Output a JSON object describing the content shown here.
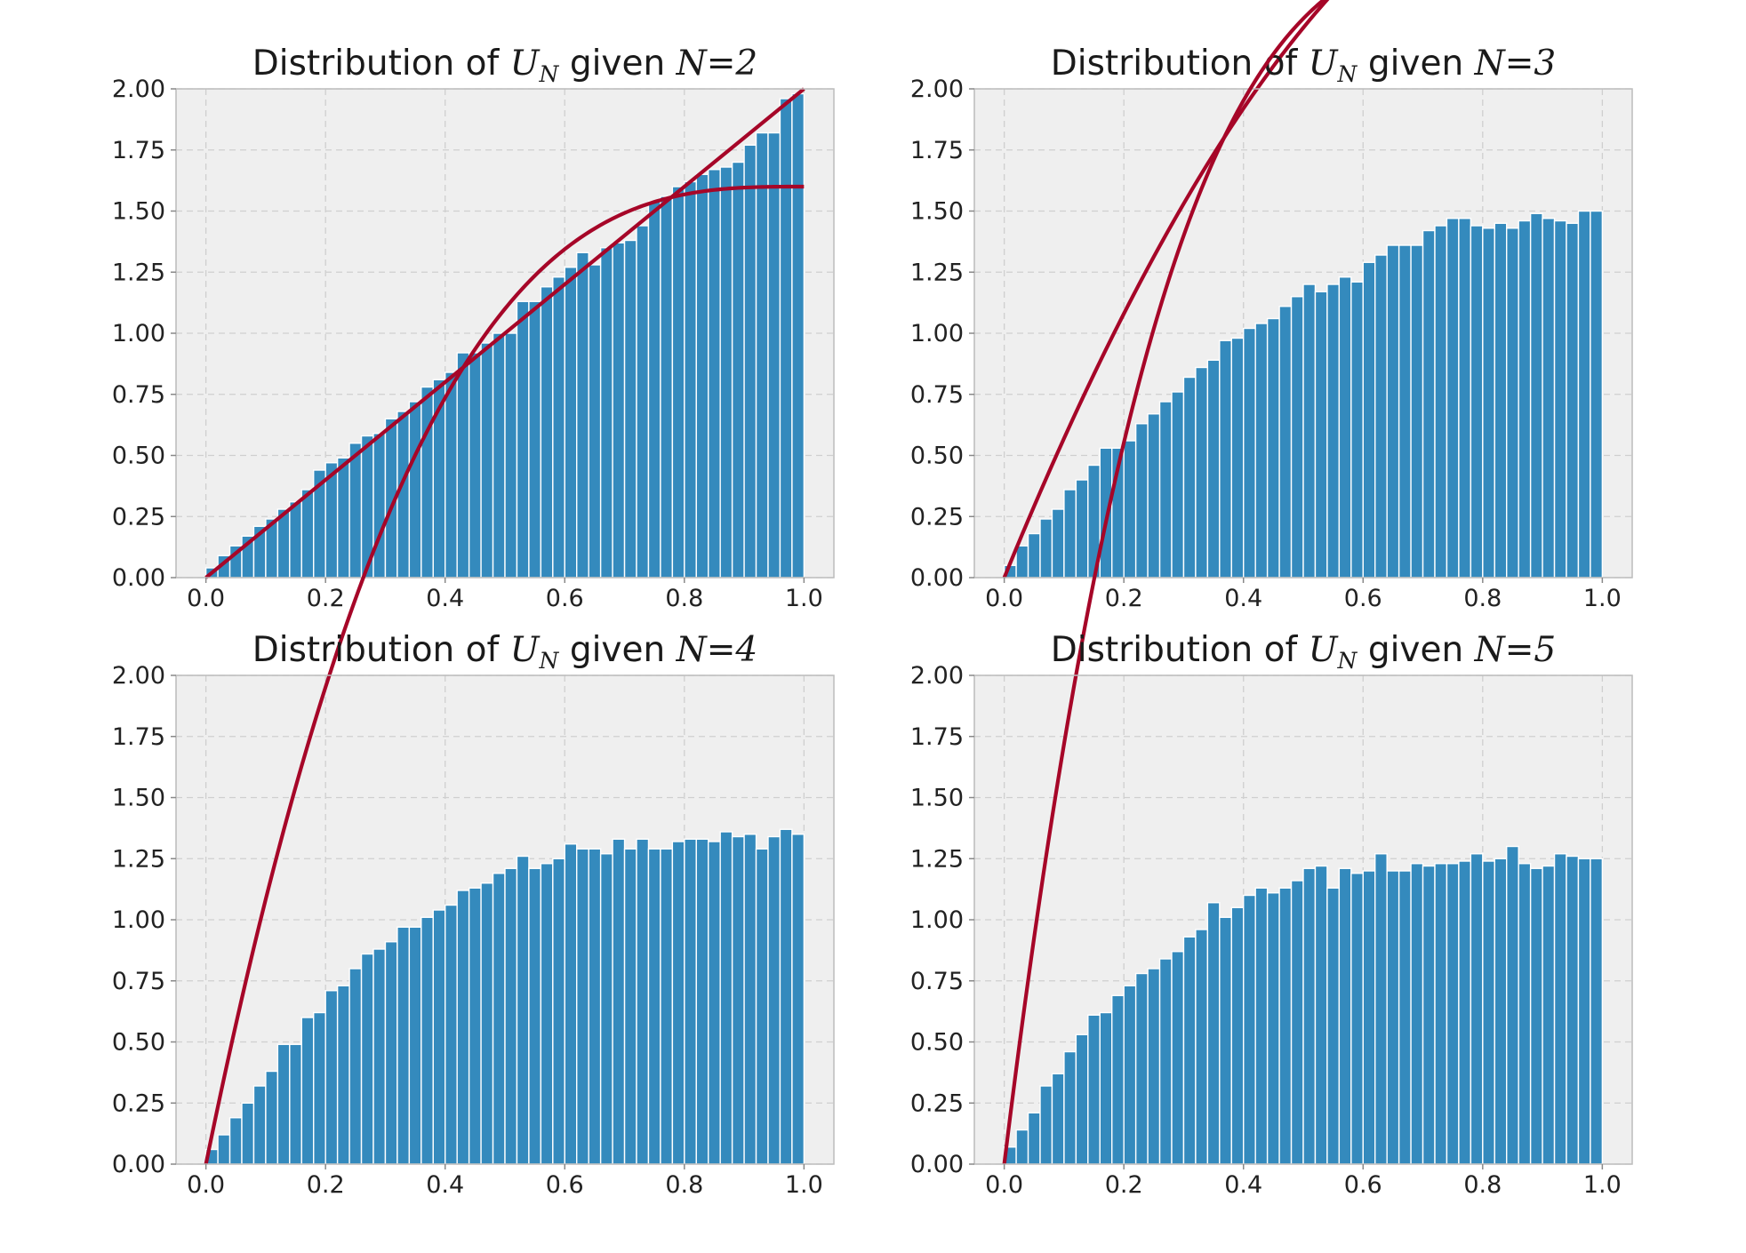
{
  "chart_data": [
    {
      "type": "bar",
      "title": {
        "prefix": "Distribution of ",
        "var": "U",
        "var_sub": "N",
        "middle": " given ",
        "cond": "N",
        "eq": "=",
        "n": "2"
      },
      "n": 2,
      "xlim": [
        -0.05,
        1.05
      ],
      "ylim": [
        0,
        2.0
      ],
      "xticks": [
        "0.0",
        "0.2",
        "0.4",
        "0.6",
        "0.8",
        "1.0"
      ],
      "yticks": [
        "0.00",
        "0.25",
        "0.50",
        "0.75",
        "1.00",
        "1.25",
        "1.50",
        "1.75",
        "2.00"
      ],
      "grid": true,
      "curve_color": "#A60628",
      "bar_color": "#348ABD",
      "bins": 50,
      "bin_range": [
        0,
        1
      ],
      "histogram_density": [
        0.04,
        0.09,
        0.13,
        0.17,
        0.21,
        0.24,
        0.28,
        0.31,
        0.36,
        0.44,
        0.47,
        0.49,
        0.55,
        0.58,
        0.59,
        0.65,
        0.68,
        0.72,
        0.78,
        0.81,
        0.84,
        0.92,
        0.92,
        0.96,
        1.0,
        1.0,
        1.13,
        1.13,
        1.19,
        1.23,
        1.27,
        1.33,
        1.28,
        1.35,
        1.37,
        1.38,
        1.44,
        1.54,
        1.56,
        1.6,
        1.62,
        1.65,
        1.67,
        1.68,
        1.7,
        1.77,
        1.82,
        1.82,
        1.96,
        1.98
      ],
      "density_curve": "N*(1-(1-u)^(N-1))"
    },
    {
      "type": "bar",
      "title": {
        "prefix": "Distribution of ",
        "var": "U",
        "var_sub": "N",
        "middle": " given ",
        "cond": "N",
        "eq": "=",
        "n": "3"
      },
      "n": 3,
      "xlim": [
        -0.05,
        1.05
      ],
      "ylim": [
        0,
        2.0
      ],
      "xticks": [
        "0.0",
        "0.2",
        "0.4",
        "0.6",
        "0.8",
        "1.0"
      ],
      "yticks": [
        "0.00",
        "0.25",
        "0.50",
        "0.75",
        "1.00",
        "1.25",
        "1.50",
        "1.75",
        "2.00"
      ],
      "grid": true,
      "curve_color": "#A60628",
      "bar_color": "#348ABD",
      "bins": 50,
      "bin_range": [
        0,
        1
      ],
      "histogram_density": [
        0.05,
        0.13,
        0.18,
        0.24,
        0.28,
        0.36,
        0.4,
        0.46,
        0.53,
        0.53,
        0.56,
        0.63,
        0.67,
        0.72,
        0.76,
        0.82,
        0.86,
        0.89,
        0.97,
        0.98,
        1.02,
        1.04,
        1.06,
        1.11,
        1.15,
        1.2,
        1.17,
        1.2,
        1.23,
        1.21,
        1.29,
        1.32,
        1.36,
        1.36,
        1.36,
        1.42,
        1.44,
        1.47,
        1.47,
        1.44,
        1.43,
        1.45,
        1.43,
        1.46,
        1.49,
        1.47,
        1.46,
        1.45,
        1.5,
        1.5
      ],
      "density_curve": "N*(1-(1-u)^(N-1))"
    },
    {
      "type": "bar",
      "title": {
        "prefix": "Distribution of ",
        "var": "U",
        "var_sub": "N",
        "middle": " given ",
        "cond": "N",
        "eq": "=",
        "n": "4"
      },
      "n": 4,
      "xlim": [
        -0.05,
        1.05
      ],
      "ylim": [
        0,
        2.0
      ],
      "xticks": [
        "0.0",
        "0.2",
        "0.4",
        "0.6",
        "0.8",
        "1.0"
      ],
      "yticks": [
        "0.00",
        "0.25",
        "0.50",
        "0.75",
        "1.00",
        "1.25",
        "1.50",
        "1.75",
        "2.00"
      ],
      "grid": true,
      "curve_color": "#A60628",
      "bar_color": "#348ABD",
      "bins": 50,
      "bin_range": [
        0,
        1
      ],
      "histogram_density": [
        0.06,
        0.12,
        0.19,
        0.25,
        0.32,
        0.38,
        0.49,
        0.49,
        0.6,
        0.62,
        0.71,
        0.73,
        0.8,
        0.86,
        0.88,
        0.91,
        0.97,
        0.97,
        1.01,
        1.04,
        1.06,
        1.12,
        1.13,
        1.15,
        1.19,
        1.21,
        1.26,
        1.21,
        1.23,
        1.25,
        1.31,
        1.29,
        1.29,
        1.27,
        1.33,
        1.29,
        1.33,
        1.29,
        1.29,
        1.32,
        1.33,
        1.33,
        1.32,
        1.36,
        1.34,
        1.35,
        1.29,
        1.34,
        1.37,
        1.35
      ],
      "density_curve": "N*(1-(1-u)^(N-1))"
    },
    {
      "type": "bar",
      "title": {
        "prefix": "Distribution of ",
        "var": "U",
        "var_sub": "N",
        "middle": " given ",
        "cond": "N",
        "eq": "=",
        "n": "5"
      },
      "n": 5,
      "xlim": [
        -0.05,
        1.05
      ],
      "ylim": [
        0,
        2.0
      ],
      "xticks": [
        "0.0",
        "0.2",
        "0.4",
        "0.6",
        "0.8",
        "1.0"
      ],
      "yticks": [
        "0.00",
        "0.25",
        "0.50",
        "0.75",
        "1.00",
        "1.25",
        "1.50",
        "1.75",
        "2.00"
      ],
      "grid": true,
      "curve_color": "#A60628",
      "bar_color": "#348ABD",
      "bins": 50,
      "bin_range": [
        0,
        1
      ],
      "histogram_density": [
        0.07,
        0.14,
        0.21,
        0.32,
        0.37,
        0.46,
        0.53,
        0.61,
        0.62,
        0.69,
        0.73,
        0.78,
        0.8,
        0.84,
        0.87,
        0.93,
        0.96,
        1.07,
        1.01,
        1.05,
        1.1,
        1.13,
        1.11,
        1.13,
        1.16,
        1.21,
        1.22,
        1.13,
        1.21,
        1.19,
        1.2,
        1.27,
        1.2,
        1.2,
        1.23,
        1.22,
        1.23,
        1.23,
        1.24,
        1.27,
        1.24,
        1.25,
        1.3,
        1.23,
        1.21,
        1.22,
        1.27,
        1.26,
        1.25,
        1.25
      ],
      "density_curve": "N*(1-(1-u)^(N-1))"
    }
  ]
}
